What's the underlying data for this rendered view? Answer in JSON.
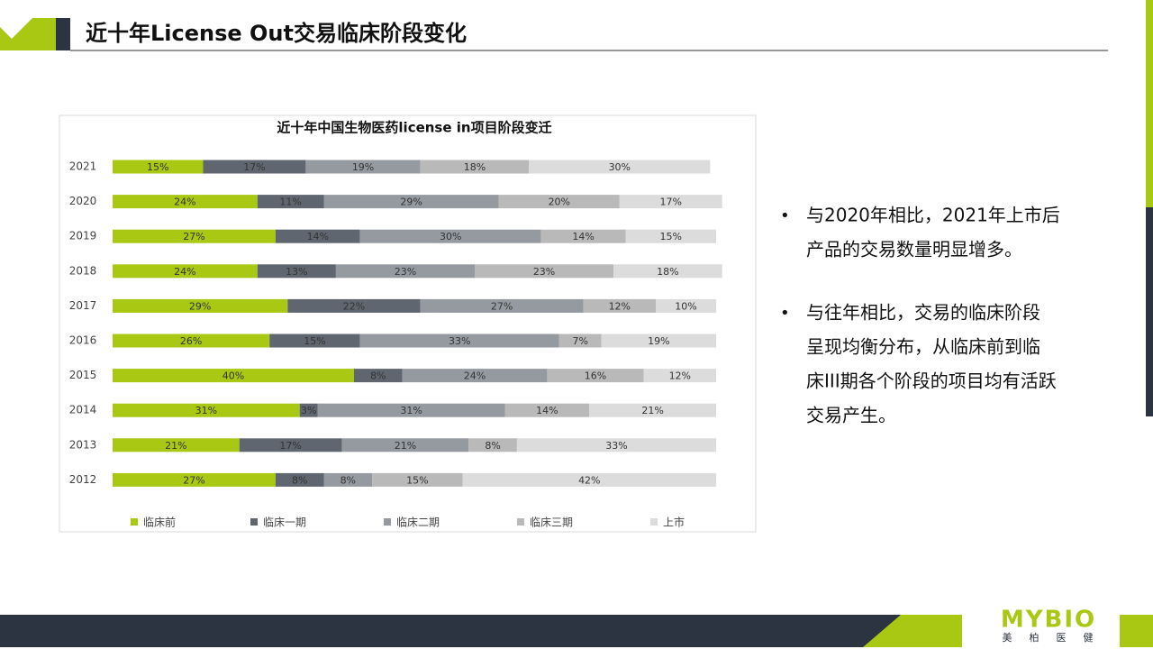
{
  "header": {
    "title": "近十年License Out交易临床阶段变化"
  },
  "chart_data": {
    "type": "stacked_barh",
    "title": "近十年中国生物医药license in项目阶段变迁",
    "categories": [
      "2021",
      "2020",
      "2019",
      "2018",
      "2017",
      "2016",
      "2015",
      "2014",
      "2013",
      "2012"
    ],
    "xlim": [
      0,
      100
    ],
    "series": [
      {
        "name": "临床前",
        "color": "#a8c813",
        "values": [
          15,
          24,
          27,
          24,
          29,
          26,
          40,
          31,
          21,
          27
        ],
        "value_labels": [
          "15%",
          "24%",
          "27%",
          "24%",
          "29%",
          "26%",
          "40%",
          "31%",
          "21%",
          "27%"
        ]
      },
      {
        "name": "临床一期",
        "color": "#5f6670",
        "values": [
          17,
          11,
          14,
          13,
          22,
          15,
          8,
          3,
          17,
          8
        ],
        "value_labels": [
          "17%",
          "11%",
          "14%",
          "13%",
          "22%",
          "15%",
          "8%",
          "3%",
          "17%",
          "8%"
        ]
      },
      {
        "name": "临床二期",
        "color": "#959aa1",
        "values": [
          19,
          29,
          30,
          23,
          27,
          33,
          24,
          31,
          21,
          8
        ],
        "value_labels": [
          "19%",
          "29%",
          "30%",
          "23%",
          "27%",
          "33%",
          "24%",
          "31%",
          "21%",
          "8%"
        ]
      },
      {
        "name": "临床三期",
        "color": "#b9b9b9",
        "values": [
          18,
          20,
          14,
          23,
          12,
          7,
          16,
          14,
          8,
          15
        ],
        "value_labels": [
          "18%",
          "20%",
          "14%",
          "23%",
          "12%",
          "7%",
          "16%",
          "14%",
          "8%",
          "15%"
        ]
      },
      {
        "name": "上市",
        "color": "#dcdcdc",
        "values": [
          30,
          17,
          15,
          18,
          10,
          19,
          12,
          21,
          33,
          42
        ],
        "value_labels": [
          "30%",
          "17%",
          "15%",
          "18%",
          "10%",
          "19%",
          "12%",
          "21%",
          "33%",
          "42%"
        ]
      }
    ],
    "legend": "bottom"
  },
  "bullets": [
    [
      "与2020年相比，2021年上市后",
      "产品的交易数量明显增多。"
    ],
    [
      "与往年相比，交易的临床阶段",
      "呈现均衡分布，从临床前到临",
      "床III期各个阶段的项目均有活跃",
      "交易产生。"
    ]
  ],
  "logo": {
    "brand": "MYBIO",
    "chars": [
      "美",
      "柏",
      "医",
      "健"
    ]
  }
}
